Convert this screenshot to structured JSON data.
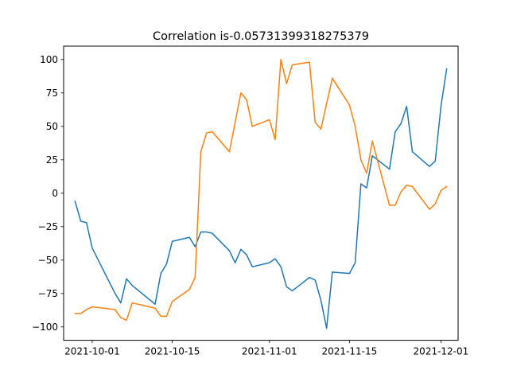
{
  "chart_data": {
    "type": "line",
    "title": "Correlation is-0.05731399318275379",
    "xlabel": "",
    "ylabel": "",
    "xlim": [
      "2021-09-26",
      "2021-12-04"
    ],
    "ylim": [
      -110,
      110
    ],
    "x_ticks": [
      {
        "date": "2021-10-01",
        "label": "2021-10-01"
      },
      {
        "date": "2021-10-15",
        "label": "2021-10-15"
      },
      {
        "date": "2021-11-01",
        "label": "2021-11-01"
      },
      {
        "date": "2021-11-15",
        "label": "2021-11-15"
      },
      {
        "date": "2021-12-01",
        "label": "2021-12-01"
      }
    ],
    "y_ticks": [
      100,
      75,
      50,
      25,
      0,
      -25,
      -50,
      -75,
      -100
    ],
    "grid": false,
    "series": [
      {
        "color": "#1f77b4",
        "points": [
          [
            "2021-09-28",
            -6
          ],
          [
            "2021-09-29",
            -21
          ],
          [
            "2021-09-30",
            -22
          ],
          [
            "2021-10-01",
            -41
          ],
          [
            "2021-10-05",
            -75
          ],
          [
            "2021-10-06",
            -82
          ],
          [
            "2021-10-07",
            -64
          ],
          [
            "2021-10-08",
            -69
          ],
          [
            "2021-10-12",
            -83
          ],
          [
            "2021-10-13",
            -60
          ],
          [
            "2021-10-14",
            -53
          ],
          [
            "2021-10-15",
            -36
          ],
          [
            "2021-10-18",
            -33
          ],
          [
            "2021-10-19",
            -40
          ],
          [
            "2021-10-20",
            -29
          ],
          [
            "2021-10-21",
            -29
          ],
          [
            "2021-10-22",
            -30
          ],
          [
            "2021-10-25",
            -43
          ],
          [
            "2021-10-26",
            -52
          ],
          [
            "2021-10-27",
            -42
          ],
          [
            "2021-10-28",
            -46
          ],
          [
            "2021-10-29",
            -55
          ],
          [
            "2021-11-01",
            -52
          ],
          [
            "2021-11-02",
            -49
          ],
          [
            "2021-11-03",
            -55
          ],
          [
            "2021-11-04",
            -70
          ],
          [
            "2021-11-05",
            -73
          ],
          [
            "2021-11-08",
            -63
          ],
          [
            "2021-11-09",
            -65
          ],
          [
            "2021-11-10",
            -80
          ],
          [
            "2021-11-11",
            -101
          ],
          [
            "2021-11-12",
            -59
          ],
          [
            "2021-11-15",
            -60
          ],
          [
            "2021-11-16",
            -52
          ],
          [
            "2021-11-17",
            7
          ],
          [
            "2021-11-18",
            4
          ],
          [
            "2021-11-19",
            28
          ],
          [
            "2021-11-22",
            18
          ],
          [
            "2021-11-23",
            46
          ],
          [
            "2021-11-24",
            52
          ],
          [
            "2021-11-25",
            65
          ],
          [
            "2021-11-26",
            31
          ],
          [
            "2021-11-29",
            20
          ],
          [
            "2021-11-30",
            24
          ],
          [
            "2021-12-01",
            65
          ],
          [
            "2021-12-02",
            93
          ]
        ]
      },
      {
        "color": "#ff7f0e",
        "points": [
          [
            "2021-09-28",
            -90
          ],
          [
            "2021-09-29",
            -90
          ],
          [
            "2021-09-30",
            -87
          ],
          [
            "2021-10-01",
            -85
          ],
          [
            "2021-10-05",
            -87
          ],
          [
            "2021-10-06",
            -93
          ],
          [
            "2021-10-07",
            -95
          ],
          [
            "2021-10-08",
            -82
          ],
          [
            "2021-10-12",
            -86
          ],
          [
            "2021-10-13",
            -92
          ],
          [
            "2021-10-14",
            -92
          ],
          [
            "2021-10-15",
            -81
          ],
          [
            "2021-10-18",
            -72
          ],
          [
            "2021-10-19",
            -63
          ],
          [
            "2021-10-20",
            31
          ],
          [
            "2021-10-21",
            45
          ],
          [
            "2021-10-22",
            46
          ],
          [
            "2021-10-25",
            31
          ],
          [
            "2021-10-26",
            53
          ],
          [
            "2021-10-27",
            75
          ],
          [
            "2021-10-28",
            70
          ],
          [
            "2021-10-29",
            50
          ],
          [
            "2021-11-01",
            55
          ],
          [
            "2021-11-02",
            40
          ],
          [
            "2021-11-03",
            100
          ],
          [
            "2021-11-04",
            82
          ],
          [
            "2021-11-05",
            96
          ],
          [
            "2021-11-08",
            98
          ],
          [
            "2021-11-09",
            53
          ],
          [
            "2021-11-10",
            48
          ],
          [
            "2021-11-12",
            86
          ],
          [
            "2021-11-15",
            66
          ],
          [
            "2021-11-16",
            50
          ],
          [
            "2021-11-17",
            25
          ],
          [
            "2021-11-18",
            15
          ],
          [
            "2021-11-19",
            39
          ],
          [
            "2021-11-22",
            -9
          ],
          [
            "2021-11-23",
            -9
          ],
          [
            "2021-11-24",
            1
          ],
          [
            "2021-11-25",
            6
          ],
          [
            "2021-11-26",
            5
          ],
          [
            "2021-11-29",
            -12
          ],
          [
            "2021-11-30",
            -8
          ],
          [
            "2021-12-01",
            2
          ],
          [
            "2021-12-02",
            5
          ]
        ]
      }
    ]
  }
}
